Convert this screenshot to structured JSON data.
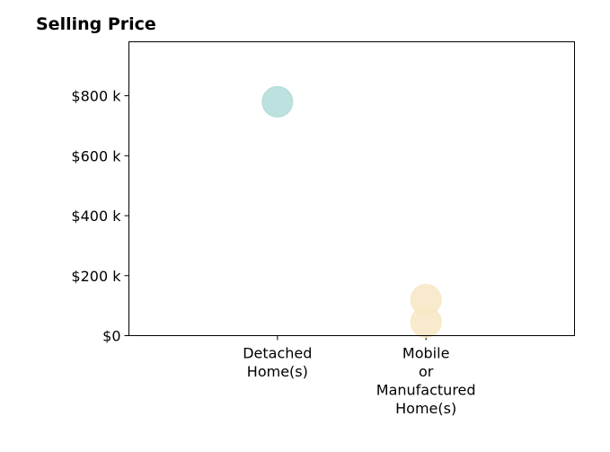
{
  "chart_data": {
    "type": "scatter",
    "title": "Selling Price",
    "xlabel": "",
    "ylabel": "",
    "categories": [
      [
        "Detached",
        "Home(s)"
      ],
      [
        "Mobile",
        "or",
        "Manufactured",
        "Home(s)"
      ]
    ],
    "xlim": [
      -1,
      2
    ],
    "ylim": [
      0,
      980000
    ],
    "yticks": [
      {
        "value": 0,
        "label": "$0"
      },
      {
        "value": 200000,
        "label": "$200 k"
      },
      {
        "value": 400000,
        "label": "$400 k"
      },
      {
        "value": 600000,
        "label": "$600 k"
      },
      {
        "value": 800000,
        "label": "$800 k"
      }
    ],
    "points": [
      {
        "category_index": 0,
        "value": 780000,
        "color": "#b0dcd8"
      },
      {
        "category_index": 1,
        "value": 120000,
        "color": "#f7e7c4"
      },
      {
        "category_index": 1,
        "value": 45000,
        "color": "#f7e7c4"
      }
    ],
    "grid": false,
    "legend": "none"
  }
}
